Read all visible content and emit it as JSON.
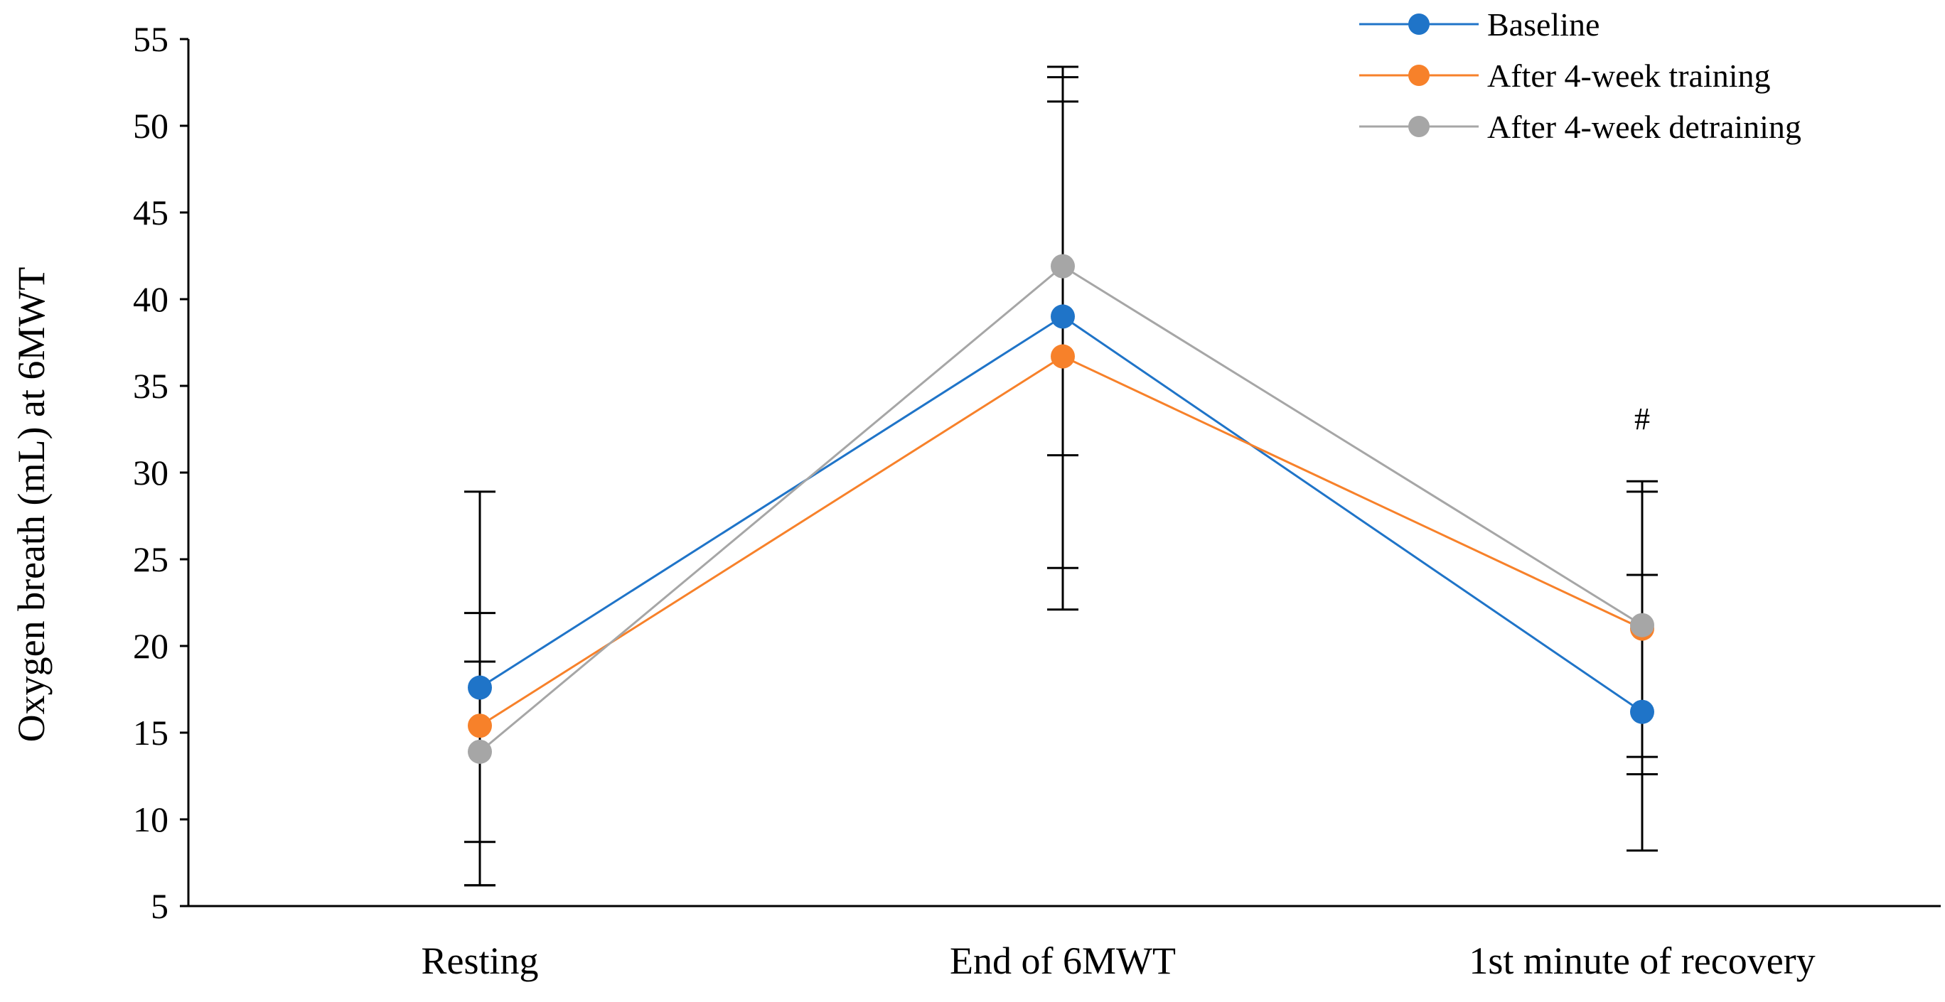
{
  "chart_data": {
    "type": "line",
    "categories": [
      "Resting",
      "End of 6MWT",
      "1st minute of recovery"
    ],
    "ylabel": "Oxygen breath (mL) at 6MWT",
    "xlabel": "",
    "ylim": [
      5,
      55
    ],
    "yticks": [
      5,
      10,
      15,
      20,
      25,
      30,
      35,
      40,
      45,
      50,
      55
    ],
    "grid": false,
    "legend_position": "top-right",
    "series": [
      {
        "name": "Baseline",
        "color": "#1f74c8",
        "values": [
          17.6,
          39.0,
          16.2
        ],
        "error_low": [
          8.7,
          24.5,
          8.2
        ],
        "error_high": [
          28.9,
          53.4,
          24.1
        ]
      },
      {
        "name": "After 4-week training",
        "color": "#f7812a",
        "values": [
          15.4,
          36.7,
          21.0
        ],
        "error_low": [
          6.2,
          22.1,
          13.6
        ],
        "error_high": [
          19.1,
          51.4,
          29.5
        ]
      },
      {
        "name": "After 4-week detraining",
        "color": "#a6a6a6",
        "values": [
          13.9,
          41.9,
          21.2
        ],
        "error_low": [
          6.2,
          31.0,
          12.6
        ],
        "error_high": [
          21.9,
          52.8,
          28.9
        ]
      }
    ],
    "annotations": [
      {
        "category": "1st minute of recovery",
        "text": "#",
        "y": 32.5
      }
    ]
  }
}
